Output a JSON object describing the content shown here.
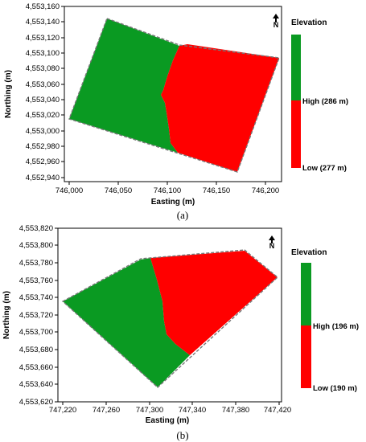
{
  "colors": {
    "high": "#0a9a22",
    "low": "#ff0000",
    "boundary": "#888888"
  },
  "panels": [
    {
      "caption": "(a)",
      "north_label": "N",
      "xlabel": "Easting (m)",
      "ylabel": "Northing (m)",
      "xticks": [
        "746,000",
        "746,050",
        "746,100",
        "746,150",
        "746,200"
      ],
      "yticks": [
        "4,553,160",
        "4,553,140",
        "4,553,120",
        "4,553,100",
        "4,553,080",
        "4,553,060",
        "4,553,040",
        "4,553,020",
        "4,553,000",
        "4,552,980",
        "4,552,960",
        "4,552,940"
      ],
      "legend": {
        "title": "Elevation",
        "high": "High (286 m)",
        "low": "Low (277 m)"
      }
    },
    {
      "caption": "(b)",
      "north_label": "N",
      "xlabel": "Easting (m)",
      "ylabel": "Northing (m)",
      "xticks": [
        "747,220",
        "747,260",
        "747,300",
        "747,340",
        "747,380",
        "747,420"
      ],
      "yticks": [
        "4,553,820",
        "4,553,800",
        "4,553,780",
        "4,553,760",
        "4,553,740",
        "4,553,720",
        "4,553,700",
        "4,553,680",
        "4,553,660",
        "4,553,640",
        "4,553,620"
      ],
      "legend": {
        "title": "Elevation",
        "high": "High (196 m)",
        "low": "Low (190 m)"
      }
    }
  ]
}
